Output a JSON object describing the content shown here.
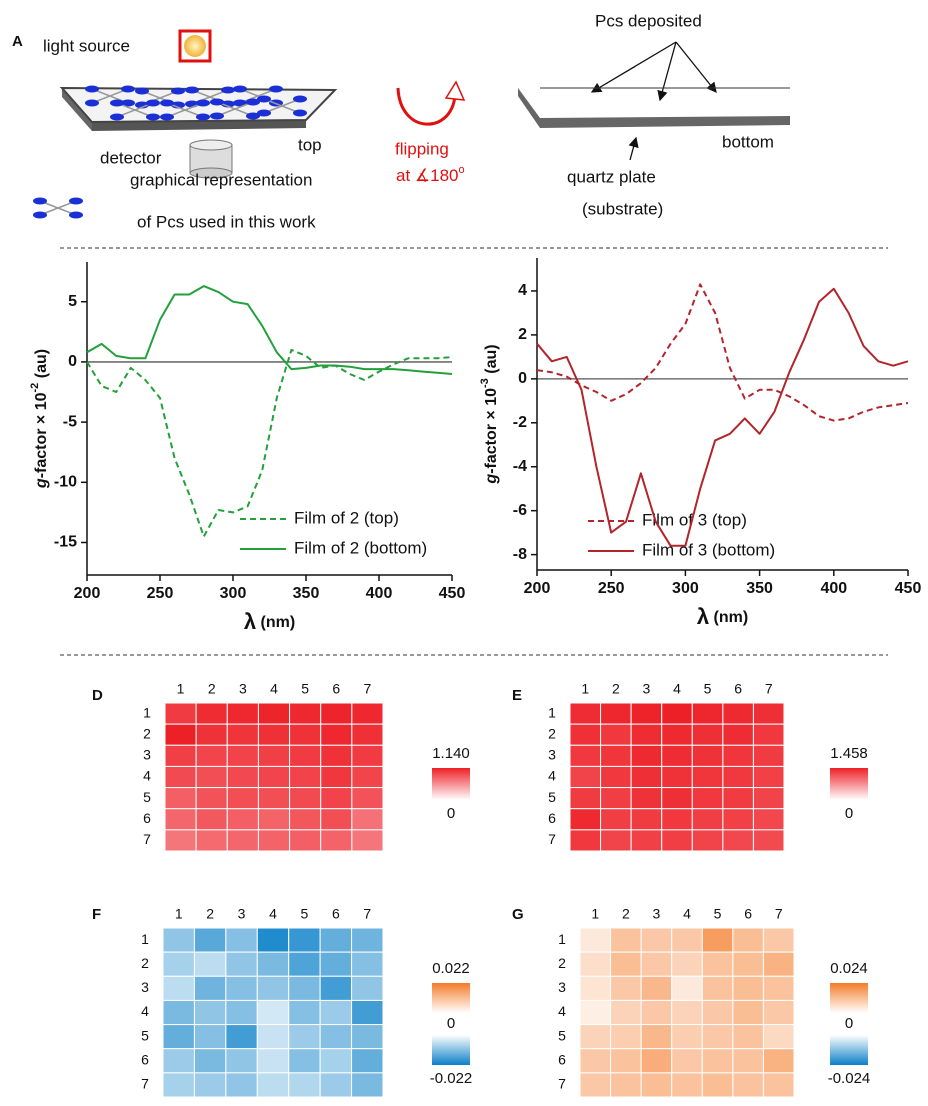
{
  "figure": {
    "panel_a": {
      "label": "A",
      "light_source": "light source",
      "detector": "detector",
      "top": "top",
      "flipping": "flipping",
      "angle": "at ∡180",
      "angle_sup": "o",
      "pcs_deposited": "Pcs deposited",
      "bottom": "bottom",
      "quartz": "quartz plate",
      "substrate": "(substrate)",
      "legend_line1": "graphical representation",
      "legend_line2": "of Pcs used in this work"
    }
  },
  "chart_data": [
    {
      "type": "line",
      "xlim": [
        200,
        450
      ],
      "xticks": [
        200,
        250,
        300,
        350,
        400,
        450
      ],
      "ylim": [
        -17.7,
        8.3
      ],
      "yticks": [
        5,
        0,
        -5,
        -10,
        -15
      ],
      "ylabel": {
        "italic": "g",
        "text": "-factor × 10",
        "exp": "-2",
        "unit": " (au)"
      },
      "xlabel": {
        "symbol": "λ",
        "unit": " (nm)"
      },
      "zero_line": true,
      "x": [
        200,
        210,
        220,
        230,
        240,
        250,
        260,
        270,
        280,
        290,
        300,
        310,
        320,
        330,
        340,
        350,
        360,
        370,
        380,
        390,
        400,
        410,
        420,
        430,
        440,
        450
      ],
      "series": [
        {
          "name": "Film of 2 (top)",
          "color": "#22a03a",
          "style": "dashed",
          "values": [
            0,
            -2,
            -2.5,
            -0.5,
            -1.5,
            -3,
            -8,
            -11,
            -14.5,
            -12.3,
            -12.5,
            -12,
            -9,
            -3,
            1,
            0.5,
            -0.5,
            -0.3,
            -1,
            -1.5,
            -0.8,
            -0.2,
            0.3,
            0.3,
            0.3,
            0.4
          ]
        },
        {
          "name": "Film of 2 (bottom)",
          "color": "#22a03a",
          "style": "solid",
          "values": [
            0.8,
            1.5,
            0.5,
            0.3,
            0.3,
            3.5,
            5.6,
            5.6,
            6.3,
            5.8,
            5.0,
            4.8,
            3.0,
            0.8,
            -0.6,
            -0.5,
            -0.3,
            -0.3,
            -0.4,
            -0.6,
            -0.6,
            -0.6,
            -0.7,
            -0.8,
            -0.9,
            -1.0
          ]
        }
      ]
    },
    {
      "type": "line",
      "xlim": [
        200,
        450
      ],
      "xticks": [
        200,
        250,
        300,
        350,
        400,
        450
      ],
      "ylim": [
        -8.7,
        5.5
      ],
      "yticks": [
        4,
        2,
        0,
        -2,
        -4,
        -6,
        -8
      ],
      "ylabel": {
        "italic": "g",
        "text": "-factor × 10",
        "exp": "-3",
        "unit": " (au)"
      },
      "xlabel": {
        "symbol": "λ",
        "unit": " (nm)"
      },
      "zero_line": true,
      "x": [
        200,
        210,
        220,
        230,
        240,
        250,
        260,
        270,
        280,
        290,
        300,
        310,
        320,
        330,
        340,
        350,
        360,
        370,
        380,
        390,
        400,
        410,
        420,
        430,
        440,
        450
      ],
      "series": [
        {
          "name": "Film of 3 (top)",
          "color": "#b3242b",
          "style": "dashed",
          "values": [
            0.4,
            0.3,
            0.1,
            -0.3,
            -0.6,
            -1.0,
            -0.7,
            -0.2,
            0.5,
            1.6,
            2.5,
            4.3,
            3.0,
            0.5,
            -0.9,
            -0.5,
            -0.5,
            -0.8,
            -1.2,
            -1.7,
            -1.9,
            -1.8,
            -1.5,
            -1.3,
            -1.2,
            -1.1
          ]
        },
        {
          "name": "Film of 3 (bottom)",
          "color": "#b3242b",
          "style": "solid",
          "values": [
            1.6,
            0.8,
            1.0,
            -0.5,
            -4,
            -7,
            -6.5,
            -4.3,
            -6.5,
            -7.6,
            -7.6,
            -5,
            -2.8,
            -2.5,
            -1.8,
            -2.5,
            -1.5,
            0.3,
            1.8,
            3.5,
            4.1,
            3,
            1.5,
            0.8,
            0.6,
            0.8
          ]
        }
      ]
    },
    {
      "type": "heatmap",
      "label": "D",
      "xcategories": [
        "1",
        "2",
        "3",
        "4",
        "5",
        "6",
        "7"
      ],
      "ycategories": [
        "1",
        "2",
        "3",
        "4",
        "5",
        "6",
        "7"
      ],
      "values": [
        [
          1.0,
          1.08,
          1.1,
          1.12,
          1.1,
          1.12,
          1.1
        ],
        [
          1.14,
          1.05,
          1.04,
          1.06,
          1.05,
          1.1,
          1.06
        ],
        [
          0.98,
          0.95,
          0.96,
          0.98,
          1.0,
          1.05,
          1.0
        ],
        [
          0.92,
          0.9,
          0.93,
          0.95,
          0.96,
          1.02,
          0.95
        ],
        [
          0.82,
          0.88,
          0.9,
          0.9,
          0.92,
          0.96,
          0.88
        ],
        [
          0.78,
          0.85,
          0.82,
          0.8,
          0.86,
          0.9,
          0.72
        ],
        [
          0.7,
          0.76,
          0.78,
          0.8,
          0.82,
          0.8,
          0.7
        ]
      ],
      "colorbar": {
        "ticks": [
          {
            "value": 1.14,
            "label": "1.140"
          },
          0
        ],
        "colors": [
          "#ee2027",
          "#ffffff"
        ]
      }
    },
    {
      "type": "heatmap",
      "label": "E",
      "xcategories": [
        "1",
        "2",
        "3",
        "4",
        "5",
        "6",
        "7"
      ],
      "ycategories": [
        "1",
        "2",
        "3",
        "4",
        "5",
        "6",
        "7"
      ],
      "values": [
        [
          1.38,
          1.42,
          1.44,
          1.458,
          1.42,
          1.4,
          1.36
        ],
        [
          1.35,
          1.3,
          1.38,
          1.4,
          1.36,
          1.38,
          1.3
        ],
        [
          1.3,
          1.32,
          1.4,
          1.38,
          1.34,
          1.32,
          1.28
        ],
        [
          1.22,
          1.3,
          1.36,
          1.34,
          1.32,
          1.3,
          1.24
        ],
        [
          1.28,
          1.26,
          1.34,
          1.36,
          1.3,
          1.28,
          1.22
        ],
        [
          1.4,
          1.26,
          1.28,
          1.3,
          1.26,
          1.24,
          1.2
        ],
        [
          1.3,
          1.22,
          1.24,
          1.26,
          1.22,
          1.2,
          1.18
        ]
      ],
      "colorbar": {
        "ticks": [
          1.458,
          0
        ],
        "colors": [
          "#ee2027",
          "#ffffff"
        ]
      }
    },
    {
      "type": "heatmap",
      "label": "F",
      "xcategories": [
        "1",
        "2",
        "3",
        "4",
        "5",
        "6",
        "7"
      ],
      "ycategories": [
        "1",
        "2",
        "3",
        "4",
        "5",
        "6",
        "7"
      ],
      "values": [
        [
          -0.01,
          -0.015,
          -0.011,
          -0.02,
          -0.018,
          -0.014,
          -0.013
        ],
        [
          -0.008,
          -0.006,
          -0.01,
          -0.012,
          -0.016,
          -0.014,
          -0.011
        ],
        [
          -0.006,
          -0.013,
          -0.011,
          -0.01,
          -0.012,
          -0.017,
          -0.01
        ],
        [
          -0.012,
          -0.01,
          -0.011,
          -0.004,
          -0.011,
          -0.009,
          -0.017
        ],
        [
          -0.014,
          -0.011,
          -0.017,
          -0.005,
          -0.009,
          -0.011,
          -0.012
        ],
        [
          -0.009,
          -0.012,
          -0.01,
          -0.005,
          -0.011,
          -0.008,
          -0.014
        ],
        [
          -0.008,
          -0.009,
          -0.01,
          -0.006,
          -0.007,
          -0.009,
          -0.012
        ]
      ],
      "colorbar": {
        "ticks": [
          0.022,
          0,
          -0.022
        ],
        "colors": [
          "#f47c2a",
          "#ffffff",
          "#0b80c8"
        ]
      }
    },
    {
      "type": "heatmap",
      "label": "G",
      "xcategories": [
        "1",
        "2",
        "3",
        "4",
        "5",
        "6",
        "7"
      ],
      "ycategories": [
        "1",
        "2",
        "3",
        "4",
        "5",
        "6",
        "7"
      ],
      "values": [
        [
          0.004,
          0.011,
          0.01,
          0.01,
          0.018,
          0.012,
          0.01
        ],
        [
          0.006,
          0.012,
          0.01,
          0.008,
          0.011,
          0.012,
          0.014
        ],
        [
          0.005,
          0.01,
          0.013,
          0.004,
          0.011,
          0.012,
          0.011
        ],
        [
          0.003,
          0.008,
          0.01,
          0.008,
          0.01,
          0.012,
          0.01
        ],
        [
          0.008,
          0.009,
          0.013,
          0.009,
          0.01,
          0.011,
          0.007
        ],
        [
          0.01,
          0.011,
          0.015,
          0.01,
          0.011,
          0.011,
          0.014
        ],
        [
          0.01,
          0.011,
          0.012,
          0.011,
          0.012,
          0.011,
          0.011
        ]
      ],
      "colorbar": {
        "ticks": [
          0.024,
          0,
          -0.024
        ],
        "colors": [
          "#f47c2a",
          "#ffffff",
          "#0b80c8"
        ]
      }
    }
  ]
}
